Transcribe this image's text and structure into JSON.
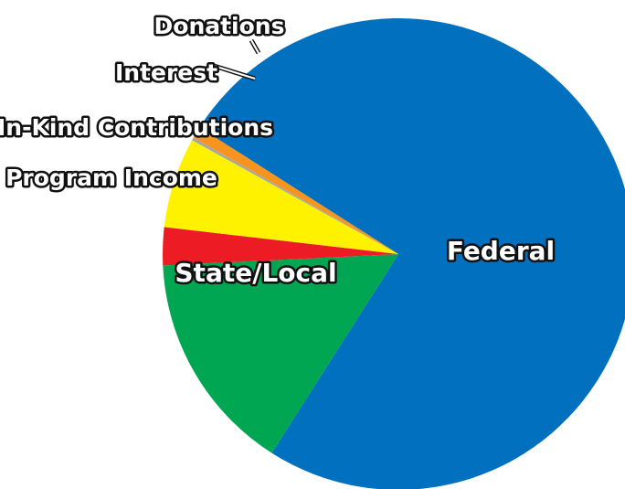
{
  "chart_data": {
    "type": "pie",
    "title": "",
    "categories": [
      "Federal",
      "State/Local",
      "Program Income",
      "In-Kind Contributions",
      "Interest",
      "Donations"
    ],
    "values": [
      75.0,
      15.2,
      2.6,
      6.2,
      0.2,
      0.8
    ],
    "colors": [
      "#0070BF",
      "#00A651",
      "#ED1C24",
      "#FFF200",
      "#A6A6A6",
      "#F7941D"
    ],
    "legend": "none",
    "labels_inside": [
      "Federal",
      "State/Local"
    ]
  }
}
